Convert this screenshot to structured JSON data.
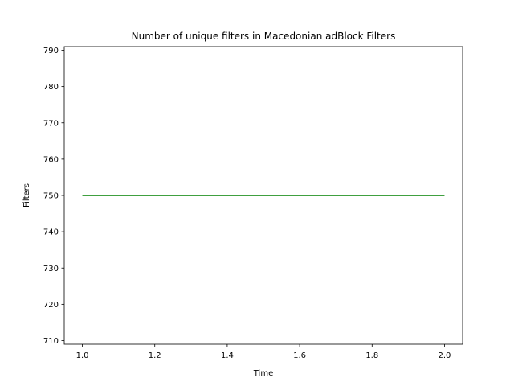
{
  "chart_data": {
    "type": "line",
    "title": "Number of unique filters in Macedonian adBlock Filters",
    "xlabel": "Time",
    "ylabel": "Filters",
    "xlim": [
      0.95,
      2.05
    ],
    "ylim": [
      709,
      791
    ],
    "xticks": [
      1.0,
      1.2,
      1.4,
      1.6,
      1.8,
      2.0
    ],
    "xtick_labels": [
      "1.0",
      "1.2",
      "1.4",
      "1.6",
      "1.8",
      "2.0"
    ],
    "yticks": [
      710,
      720,
      730,
      740,
      750,
      760,
      770,
      780,
      790
    ],
    "ytick_labels": [
      "710",
      "720",
      "730",
      "740",
      "750",
      "760",
      "770",
      "780",
      "790"
    ],
    "grid": false,
    "series": [
      {
        "color": "#008000",
        "x": [
          1,
          2
        ],
        "y": [
          750,
          750
        ]
      }
    ]
  }
}
